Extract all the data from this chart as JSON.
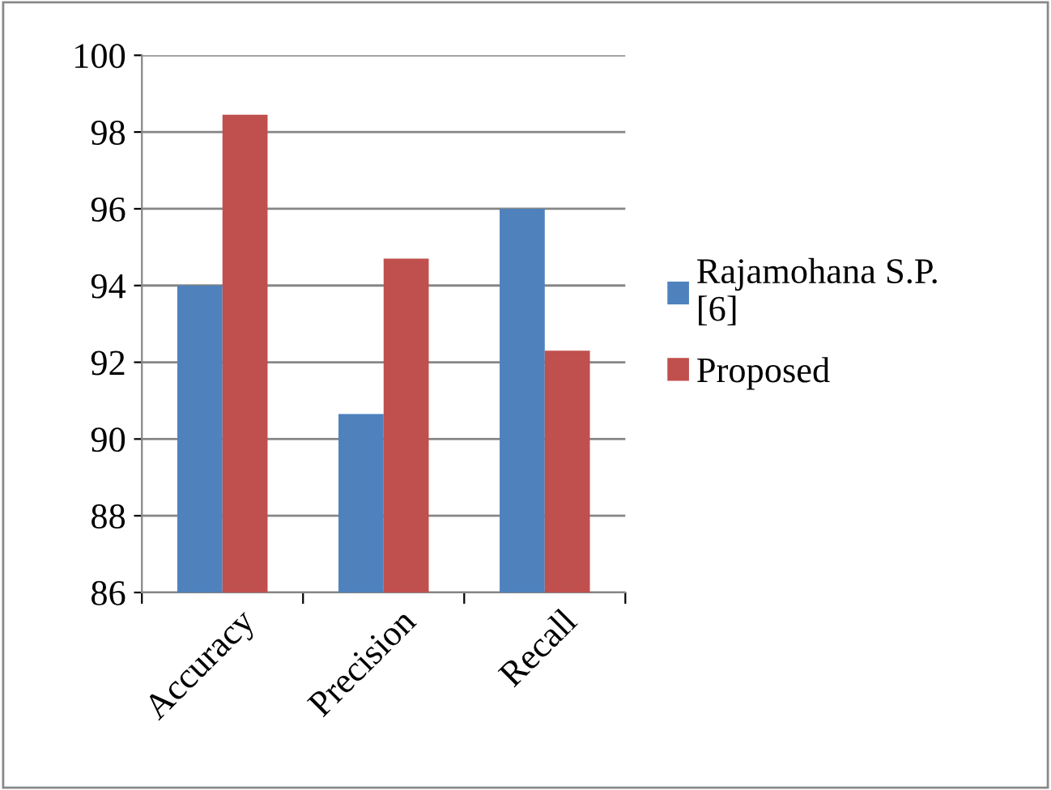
{
  "chart_data": {
    "type": "bar",
    "categories": [
      "Accuracy",
      "Precision",
      "Recall"
    ],
    "series": [
      {
        "name": "Rajamohana S.P. [6]",
        "color": "#4f81bd",
        "values": [
          94.0,
          90.65,
          96.0
        ]
      },
      {
        "name": "Proposed",
        "color": "#c0504d",
        "values": [
          98.45,
          94.7,
          92.3
        ]
      }
    ],
    "ylim": [
      86,
      100
    ],
    "yticks": [
      86,
      88,
      90,
      92,
      94,
      96,
      98,
      100
    ],
    "grid": "y",
    "legend": "right"
  }
}
